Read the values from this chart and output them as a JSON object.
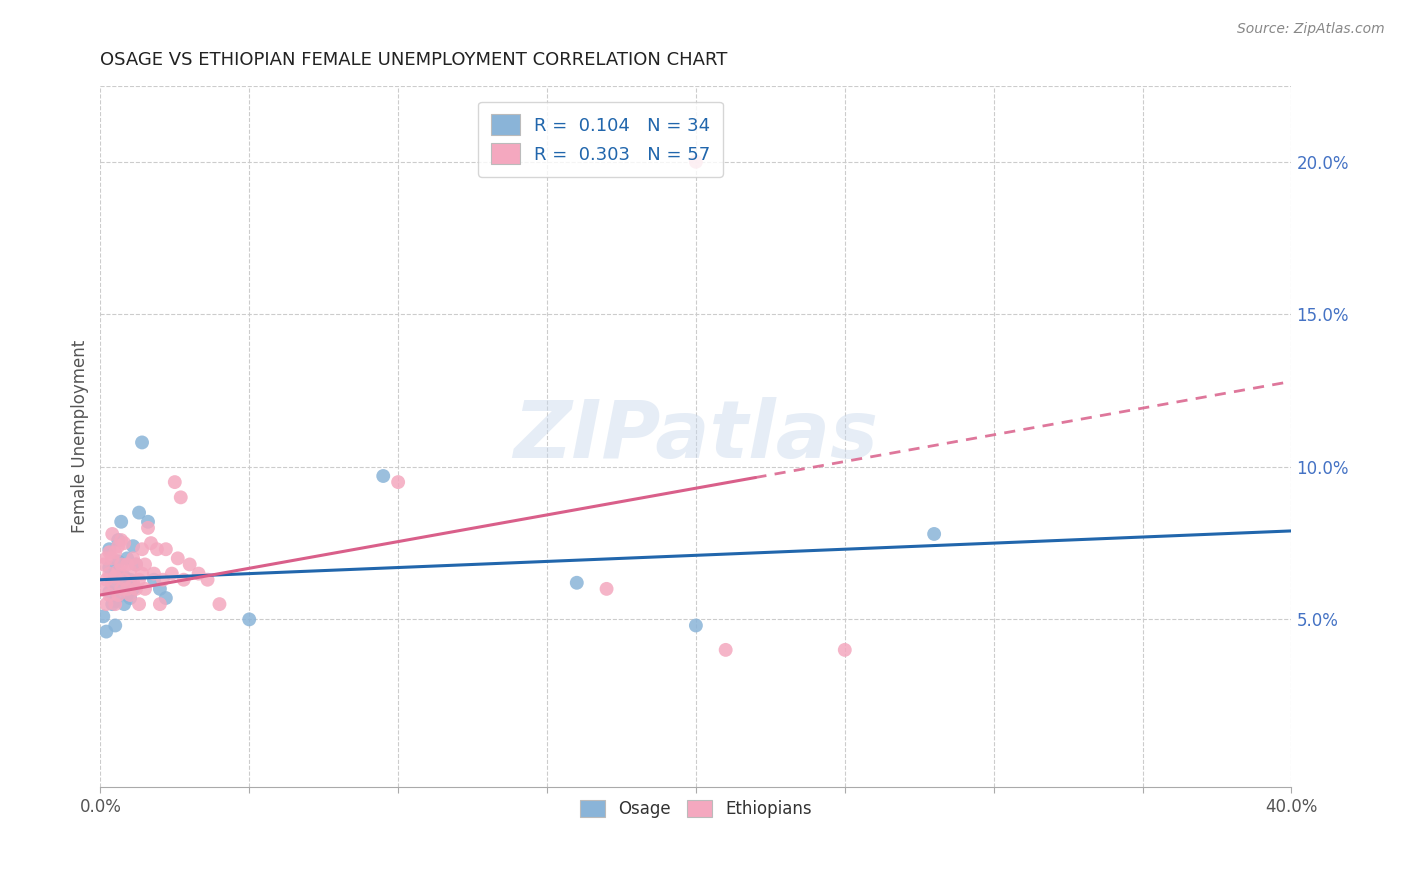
{
  "title": "OSAGE VS ETHIOPIAN FEMALE UNEMPLOYMENT CORRELATION CHART",
  "source": "Source: ZipAtlas.com",
  "ylabel": "Female Unemployment",
  "right_yticks": [
    "20.0%",
    "15.0%",
    "10.0%",
    "5.0%"
  ],
  "right_ytick_vals": [
    0.2,
    0.15,
    0.1,
    0.05
  ],
  "xlim": [
    0.0,
    0.4
  ],
  "ylim": [
    -0.005,
    0.225
  ],
  "osage_color": "#8ab4d8",
  "ethiopian_color": "#f4a8bf",
  "osage_line_color": "#2166ac",
  "ethiopian_line_color": "#d95f8a",
  "legend_label_osage": "R =  0.104   N = 34",
  "legend_label_ethiopian": "R =  0.303   N = 57",
  "legend_label_osage_bottom": "Osage",
  "legend_label_ethiopian_bottom": "Ethiopians",
  "watermark": "ZIPatlas",
  "background_color": "#ffffff",
  "grid_color": "#cccccc",
  "osage_x": [
    0.001,
    0.002,
    0.003,
    0.003,
    0.003,
    0.004,
    0.004,
    0.005,
    0.005,
    0.005,
    0.006,
    0.006,
    0.007,
    0.007,
    0.008,
    0.008,
    0.009,
    0.009,
    0.01,
    0.01,
    0.011,
    0.011,
    0.012,
    0.013,
    0.014,
    0.016,
    0.018,
    0.02,
    0.022,
    0.05,
    0.095,
    0.16,
    0.2,
    0.28
  ],
  "osage_y": [
    0.051,
    0.046,
    0.059,
    0.067,
    0.073,
    0.055,
    0.062,
    0.048,
    0.056,
    0.065,
    0.069,
    0.076,
    0.06,
    0.082,
    0.055,
    0.064,
    0.058,
    0.07,
    0.057,
    0.063,
    0.06,
    0.074,
    0.068,
    0.085,
    0.108,
    0.082,
    0.063,
    0.06,
    0.057,
    0.05,
    0.097,
    0.062,
    0.048,
    0.078
  ],
  "ethiopian_x": [
    0.001,
    0.001,
    0.002,
    0.002,
    0.002,
    0.003,
    0.003,
    0.003,
    0.004,
    0.004,
    0.004,
    0.005,
    0.005,
    0.005,
    0.006,
    0.006,
    0.006,
    0.007,
    0.007,
    0.007,
    0.008,
    0.008,
    0.009,
    0.009,
    0.01,
    0.01,
    0.011,
    0.011,
    0.012,
    0.012,
    0.013,
    0.013,
    0.014,
    0.014,
    0.015,
    0.015,
    0.016,
    0.017,
    0.018,
    0.019,
    0.02,
    0.021,
    0.022,
    0.024,
    0.026,
    0.028,
    0.03,
    0.033,
    0.036,
    0.04,
    0.1,
    0.17,
    0.21,
    0.25,
    0.2,
    0.025,
    0.027
  ],
  "ethiopian_y": [
    0.06,
    0.068,
    0.055,
    0.063,
    0.07,
    0.058,
    0.065,
    0.072,
    0.062,
    0.07,
    0.078,
    0.055,
    0.064,
    0.072,
    0.058,
    0.066,
    0.074,
    0.06,
    0.068,
    0.076,
    0.063,
    0.075,
    0.06,
    0.068,
    0.058,
    0.066,
    0.062,
    0.07,
    0.06,
    0.068,
    0.055,
    0.063,
    0.065,
    0.073,
    0.06,
    0.068,
    0.08,
    0.075,
    0.065,
    0.073,
    0.055,
    0.063,
    0.073,
    0.065,
    0.07,
    0.063,
    0.068,
    0.065,
    0.063,
    0.055,
    0.095,
    0.06,
    0.04,
    0.04,
    0.2,
    0.095,
    0.09
  ]
}
